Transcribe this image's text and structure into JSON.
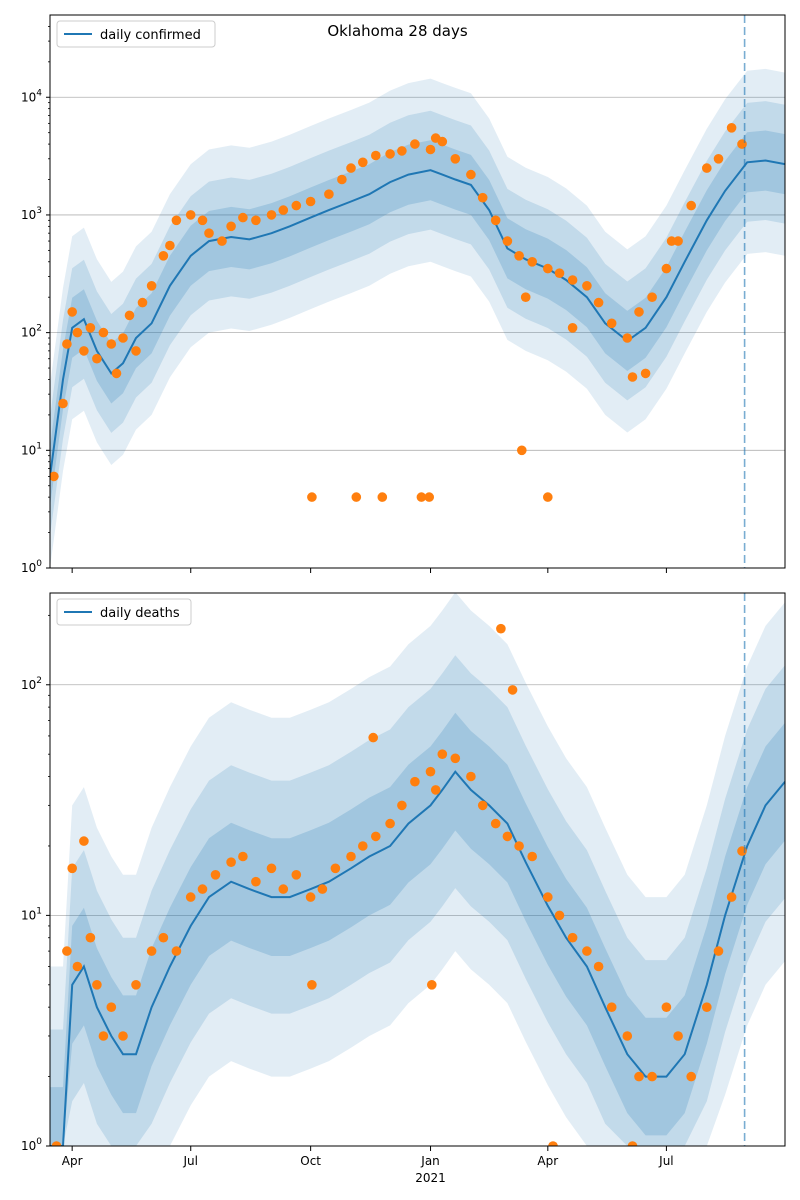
{
  "chart_data": [
    {
      "type": "line",
      "title": "Oklahoma 28 days",
      "xlabel": "",
      "ylabel": "",
      "y_scale": "log",
      "ylim": [
        1,
        50000
      ],
      "xlim": [
        "2020-03-15",
        "2021-09-30"
      ],
      "grid": "y-major",
      "legend": "upper-left",
      "vline": "2021-08-30",
      "series_colors": {
        "line": "#1f77b4",
        "points": "#ff7f0e",
        "band": "#1f77b4"
      },
      "yticks": [
        {
          "value": 1,
          "label": "10",
          "exp": "0"
        },
        {
          "value": 10,
          "label": "10",
          "exp": "1"
        },
        {
          "value": 100,
          "label": "10",
          "exp": "2"
        },
        {
          "value": 1000,
          "label": "10",
          "exp": "3"
        },
        {
          "value": 10000,
          "label": "10",
          "exp": "4"
        }
      ],
      "series": [
        {
          "name": "daily confirmed",
          "kind": "line",
          "x": [
            "2020-03-15",
            "2020-03-25",
            "2020-04-01",
            "2020-04-10",
            "2020-04-20",
            "2020-05-01",
            "2020-05-10",
            "2020-05-20",
            "2020-06-01",
            "2020-06-15",
            "2020-07-01",
            "2020-07-15",
            "2020-08-01",
            "2020-08-15",
            "2020-09-01",
            "2020-09-15",
            "2020-10-01",
            "2020-10-15",
            "2020-11-01",
            "2020-11-15",
            "2020-12-01",
            "2020-12-15",
            "2021-01-01",
            "2021-01-10",
            "2021-01-20",
            "2021-02-01",
            "2021-02-15",
            "2021-03-01",
            "2021-03-15",
            "2021-04-01",
            "2021-04-15",
            "2021-05-01",
            "2021-05-15",
            "2021-06-01",
            "2021-06-15",
            "2021-07-01",
            "2021-07-15",
            "2021-08-01",
            "2021-08-15",
            "2021-09-01",
            "2021-09-15",
            "2021-09-30"
          ],
          "y": [
            6,
            40,
            110,
            130,
            70,
            45,
            55,
            90,
            120,
            250,
            450,
            600,
            650,
            620,
            700,
            800,
            950,
            1100,
            1300,
            1500,
            1900,
            2200,
            2400,
            2200,
            2000,
            1800,
            1100,
            520,
            420,
            350,
            280,
            200,
            120,
            85,
            110,
            200,
            400,
            900,
            1600,
            2800,
            2900,
            2700
          ]
        },
        {
          "name": "",
          "kind": "scatter",
          "x": [
            "2020-03-18",
            "2020-03-25",
            "2020-03-28",
            "2020-04-01",
            "2020-04-05",
            "2020-04-10",
            "2020-04-15",
            "2020-04-20",
            "2020-04-25",
            "2020-05-01",
            "2020-05-05",
            "2020-05-10",
            "2020-05-15",
            "2020-05-20",
            "2020-05-25",
            "2020-06-01",
            "2020-06-10",
            "2020-06-15",
            "2020-06-20",
            "2020-07-01",
            "2020-07-10",
            "2020-07-15",
            "2020-07-25",
            "2020-08-01",
            "2020-08-10",
            "2020-08-20",
            "2020-09-01",
            "2020-09-10",
            "2020-09-20",
            "2020-10-01",
            "2020-10-15",
            "2020-10-25",
            "2020-11-01",
            "2020-11-10",
            "2020-11-20",
            "2020-12-01",
            "2020-12-10",
            "2020-12-20",
            "2021-01-01",
            "2021-01-05",
            "2021-01-10",
            "2021-01-20",
            "2021-02-01",
            "2021-02-10",
            "2021-02-20",
            "2021-03-01",
            "2021-03-10",
            "2021-03-20",
            "2021-04-01",
            "2021-04-10",
            "2021-04-20",
            "2021-05-01",
            "2021-05-10",
            "2021-05-20",
            "2021-06-01",
            "2021-06-10",
            "2021-06-20",
            "2021-07-01",
            "2021-07-10",
            "2021-07-20",
            "2021-08-01",
            "2021-08-10",
            "2021-08-20",
            "2021-08-28",
            "2020-10-02",
            "2020-11-05",
            "2020-11-25",
            "2020-12-25",
            "2020-12-31",
            "2021-03-12",
            "2021-04-01",
            "2021-03-15",
            "2021-06-05",
            "2021-06-15",
            "2021-07-05",
            "2021-04-20"
          ],
          "y": [
            6,
            25,
            80,
            150,
            100,
            70,
            110,
            60,
            100,
            80,
            45,
            90,
            140,
            70,
            180,
            250,
            450,
            550,
            900,
            1000,
            900,
            700,
            600,
            800,
            950,
            900,
            1000,
            1100,
            1200,
            1300,
            1500,
            2000,
            2500,
            2800,
            3200,
            3300,
            3500,
            4000,
            3600,
            4500,
            4200,
            3000,
            2200,
            1400,
            900,
            600,
            450,
            400,
            350,
            320,
            280,
            250,
            180,
            120,
            90,
            150,
            200,
            350,
            600,
            1200,
            2500,
            3000,
            5500,
            4000,
            4,
            4,
            4,
            4,
            4,
            10,
            4,
            200,
            42,
            45,
            600,
            110
          ]
        }
      ]
    },
    {
      "type": "line",
      "title": "",
      "xlabel": "",
      "ylabel": "",
      "y_scale": "log",
      "ylim": [
        1,
        250
      ],
      "xlim": [
        "2020-03-15",
        "2021-09-30"
      ],
      "grid": "y-major",
      "legend": "upper-left",
      "vline": "2021-08-30",
      "series_colors": {
        "line": "#1f77b4",
        "points": "#ff7f0e",
        "band": "#1f77b4"
      },
      "yticks": [
        {
          "value": 1,
          "label": "10",
          "exp": "0"
        },
        {
          "value": 10,
          "label": "10",
          "exp": "1"
        },
        {
          "value": 100,
          "label": "10",
          "exp": "2"
        }
      ],
      "series": [
        {
          "name": "daily deaths",
          "kind": "line",
          "x": [
            "2020-03-15",
            "2020-03-25",
            "2020-04-01",
            "2020-04-10",
            "2020-04-20",
            "2020-05-01",
            "2020-05-10",
            "2020-05-20",
            "2020-06-01",
            "2020-06-15",
            "2020-07-01",
            "2020-07-15",
            "2020-08-01",
            "2020-08-15",
            "2020-09-01",
            "2020-09-15",
            "2020-10-01",
            "2020-10-15",
            "2020-11-01",
            "2020-11-15",
            "2020-12-01",
            "2020-12-15",
            "2021-01-01",
            "2021-01-10",
            "2021-01-20",
            "2021-02-01",
            "2021-02-15",
            "2021-03-01",
            "2021-03-15",
            "2021-04-01",
            "2021-04-15",
            "2021-05-01",
            "2021-05-15",
            "2021-06-01",
            "2021-06-15",
            "2021-07-01",
            "2021-07-15",
            "2021-08-01",
            "2021-08-15",
            "2021-09-01",
            "2021-09-15",
            "2021-09-30"
          ],
          "y": [
            1,
            1,
            5,
            6,
            4,
            3,
            2.5,
            2.5,
            4,
            6,
            9,
            12,
            14,
            13,
            12,
            12,
            13,
            14,
            16,
            18,
            20,
            25,
            30,
            35,
            42,
            35,
            30,
            25,
            17,
            11,
            8,
            6,
            4,
            2.5,
            2,
            2,
            2.5,
            5,
            10,
            20,
            30,
            38
          ]
        },
        {
          "name": "",
          "kind": "scatter",
          "x": [
            "2020-03-20",
            "2020-03-28",
            "2020-04-01",
            "2020-04-05",
            "2020-04-10",
            "2020-04-15",
            "2020-04-20",
            "2020-04-25",
            "2020-05-01",
            "2020-05-10",
            "2020-05-20",
            "2020-06-01",
            "2020-06-10",
            "2020-06-20",
            "2020-07-01",
            "2020-07-10",
            "2020-07-20",
            "2020-08-01",
            "2020-08-10",
            "2020-08-20",
            "2020-09-01",
            "2020-09-10",
            "2020-09-20",
            "2020-10-01",
            "2020-10-10",
            "2020-10-20",
            "2020-11-01",
            "2020-11-10",
            "2020-11-20",
            "2020-12-01",
            "2020-12-10",
            "2020-12-20",
            "2021-01-01",
            "2021-01-05",
            "2021-01-10",
            "2021-01-20",
            "2021-02-01",
            "2021-02-10",
            "2021-02-20",
            "2021-03-01",
            "2021-03-10",
            "2021-03-20",
            "2021-04-01",
            "2021-04-10",
            "2021-04-20",
            "2021-05-01",
            "2021-05-10",
            "2021-05-20",
            "2021-06-01",
            "2021-06-10",
            "2021-06-20",
            "2021-07-01",
            "2021-07-10",
            "2021-07-20",
            "2021-08-01",
            "2021-08-10",
            "2021-08-20",
            "2021-08-28",
            "2021-02-24",
            "2021-03-05",
            "2020-11-18",
            "2020-10-02",
            "2021-01-02",
            "2021-06-05",
            "2021-04-05"
          ],
          "y": [
            1,
            7,
            16,
            6,
            21,
            8,
            5,
            3,
            4,
            3,
            5,
            7,
            8,
            7,
            12,
            13,
            15,
            17,
            18,
            14,
            16,
            13,
            15,
            12,
            13,
            16,
            18,
            20,
            22,
            25,
            30,
            38,
            42,
            35,
            50,
            48,
            40,
            30,
            25,
            22,
            20,
            18,
            12,
            10,
            8,
            7,
            6,
            4,
            3,
            2,
            2,
            4,
            3,
            2,
            4,
            7,
            12,
            19,
            175,
            95,
            59,
            5,
            5,
            1,
            1
          ]
        }
      ]
    }
  ],
  "xaxis": {
    "ticks": [
      {
        "date": "2020-04-01",
        "label": "Apr"
      },
      {
        "date": "2020-07-01",
        "label": "Jul"
      },
      {
        "date": "2020-10-01",
        "label": "Oct"
      },
      {
        "date": "2021-01-01",
        "label": "Jan"
      },
      {
        "date": "2021-04-01",
        "label": "Apr"
      },
      {
        "date": "2021-07-01",
        "label": "Jul"
      }
    ],
    "year_label": {
      "date": "2021-01-01",
      "label": "2021"
    }
  }
}
